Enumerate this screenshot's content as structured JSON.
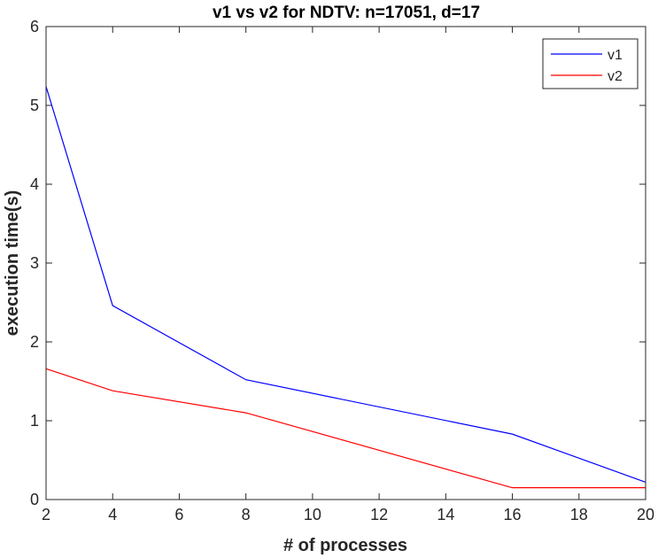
{
  "chart_data": {
    "type": "line",
    "title": "v1 vs v2 for NDTV: n=17051, d=17",
    "xlabel": "# of processes",
    "ylabel": "execution time(s)",
    "xlim": [
      2,
      20
    ],
    "ylim": [
      0,
      6
    ],
    "xticks": [
      2,
      4,
      6,
      8,
      10,
      12,
      14,
      16,
      18,
      20
    ],
    "yticks": [
      0,
      1,
      2,
      3,
      4,
      5,
      6
    ],
    "grid": false,
    "legend_position": "top-right",
    "series": [
      {
        "name": "v1",
        "color": "#0000ff",
        "x": [
          2,
          4,
          8,
          16,
          20
        ],
        "y": [
          5.24,
          2.46,
          1.52,
          0.83,
          0.22
        ]
      },
      {
        "name": "v2",
        "color": "#ff0000",
        "x": [
          2,
          4,
          8,
          16,
          20
        ],
        "y": [
          1.66,
          1.38,
          1.1,
          0.15,
          0.15
        ]
      }
    ]
  }
}
